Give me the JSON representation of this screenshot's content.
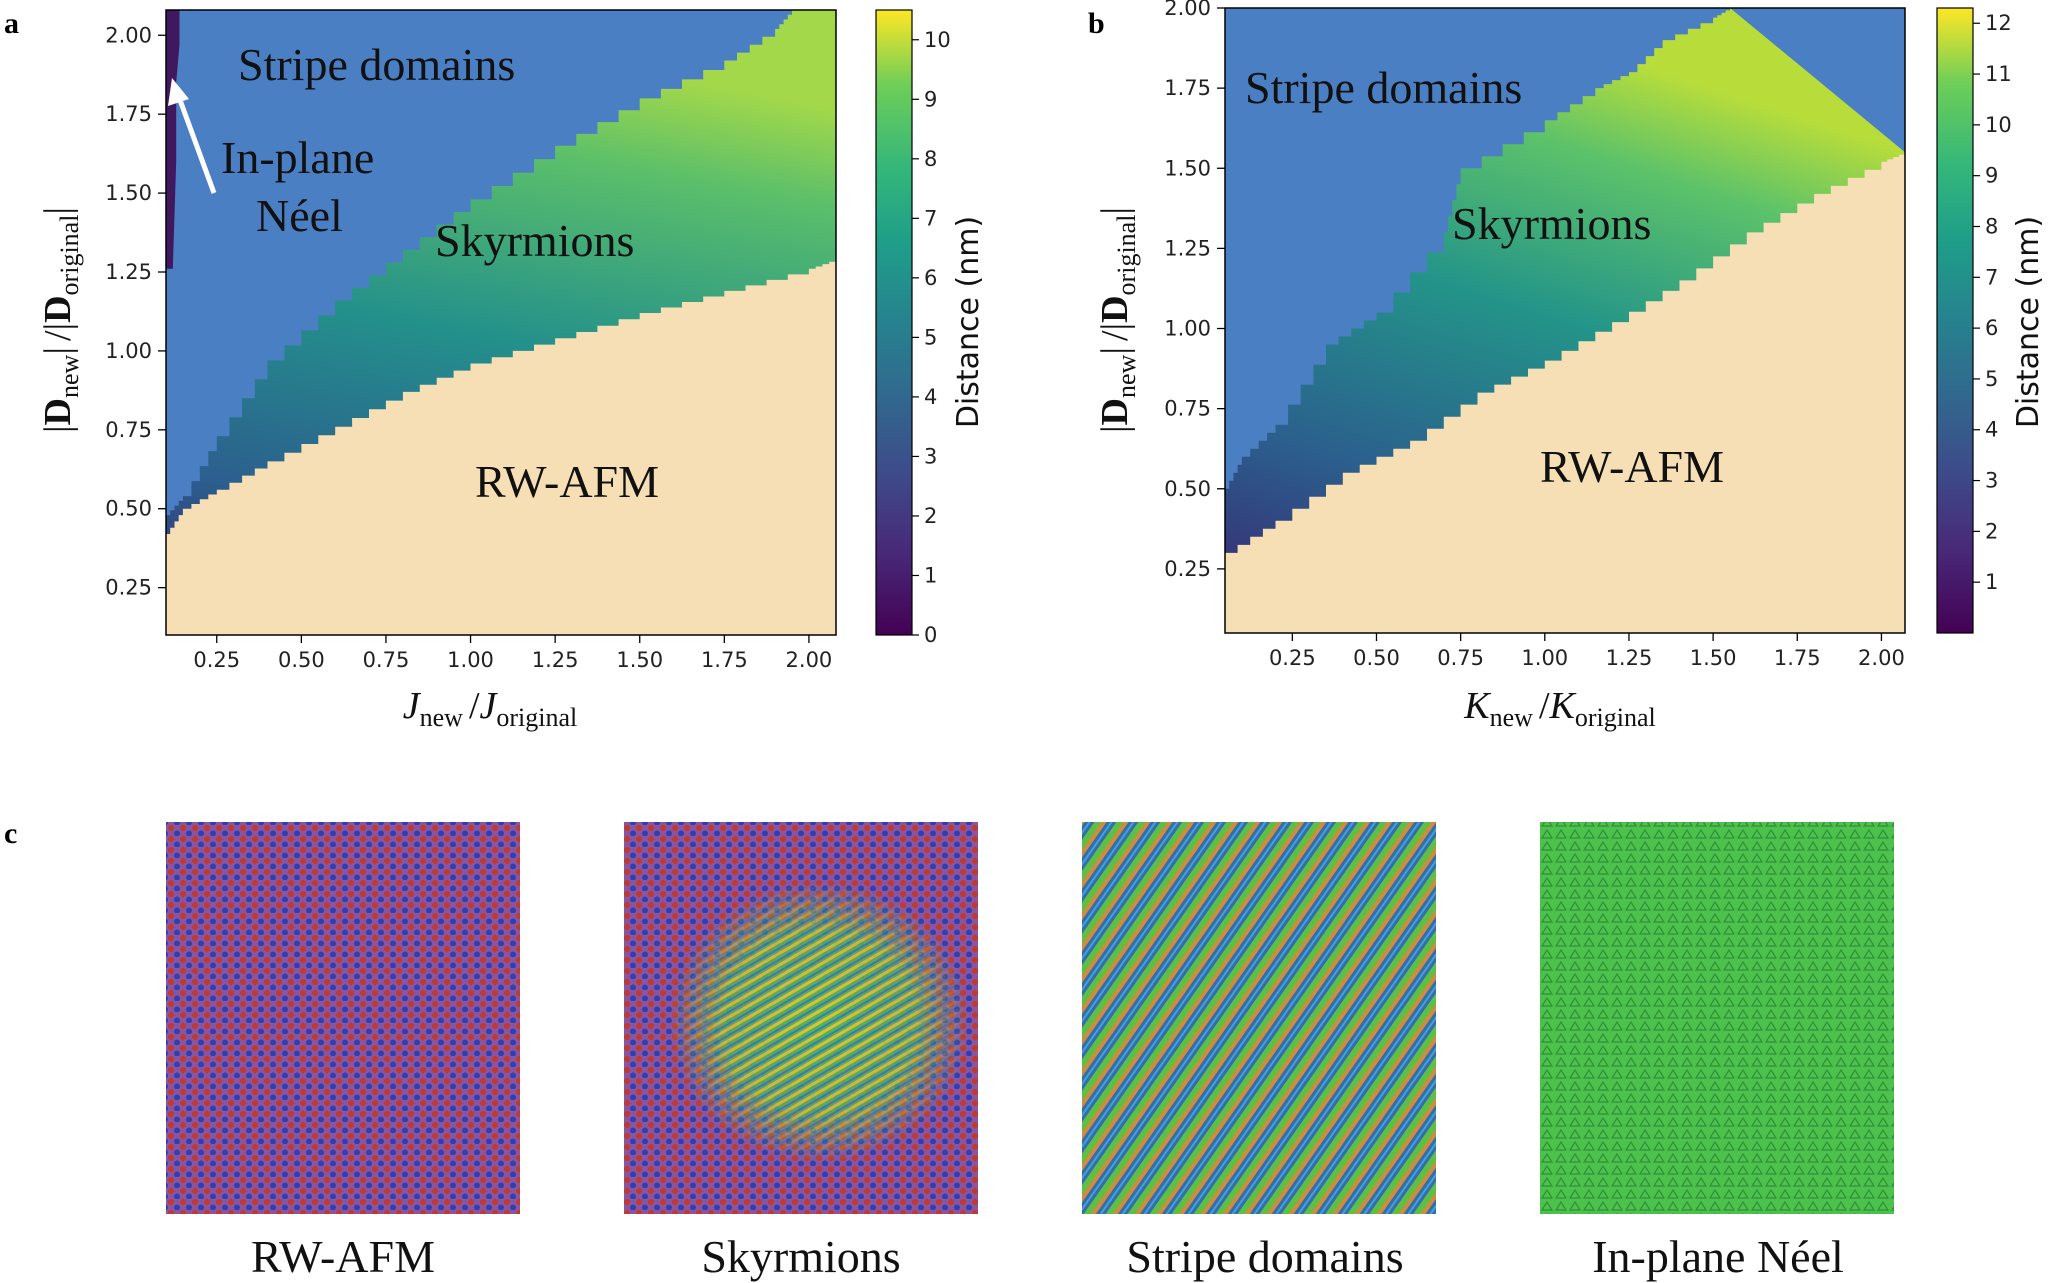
{
  "chart_data": [
    {
      "panel": "a",
      "type": "heatmap",
      "title": "",
      "xlabel": {
        "main": "J",
        "sub1": "new",
        "sep": "/",
        "main2": "J",
        "sub2": "original"
      },
      "ylabel": {
        "bar": "|",
        "main": "D",
        "sub1": "new",
        "sep": "/",
        "main2": "D",
        "sub2": "original"
      },
      "xlim": [
        0.1,
        2.08
      ],
      "ylim": [
        0.1,
        2.08
      ],
      "xticks": [
        0.25,
        0.5,
        0.75,
        1.0,
        1.25,
        1.5,
        1.75,
        2.0
      ],
      "xtick_labels": [
        "0.25",
        "0.50",
        "0.75",
        "1.00",
        "1.25",
        "1.50",
        "1.75",
        "2.00"
      ],
      "yticks": [
        0.25,
        0.5,
        0.75,
        1.0,
        1.25,
        1.5,
        1.75,
        2.0
      ],
      "ytick_labels": [
        "0.25",
        "0.50",
        "0.75",
        "1.00",
        "1.25",
        "1.50",
        "1.75",
        "2.00"
      ],
      "boundaries": {
        "rwafm_skyrmion": {
          "x": [
            0.1,
            0.15,
            0.25,
            0.4,
            0.6,
            0.8,
            1.0,
            1.25,
            1.5,
            1.75,
            2.0,
            2.08
          ],
          "y": [
            0.42,
            0.5,
            0.56,
            0.65,
            0.76,
            0.87,
            0.96,
            1.04,
            1.12,
            1.19,
            1.26,
            1.29
          ]
        },
        "skyrmion_stripe": {
          "x": [
            0.1,
            0.15,
            0.25,
            0.4,
            0.6,
            0.8,
            1.0,
            1.25,
            1.5,
            1.75,
            1.9,
            1.95
          ],
          "y": [
            0.48,
            0.54,
            0.73,
            0.97,
            1.16,
            1.32,
            1.48,
            1.65,
            1.8,
            1.92,
            2.02,
            2.08
          ]
        },
        "inplane_neel_right_edge": {
          "x": [
            0.14,
            0.14,
            0.13,
            0.13,
            0.12
          ],
          "y": [
            2.08,
            1.97,
            1.85,
            1.6,
            1.26
          ]
        }
      },
      "regions": [
        {
          "name": "Stripe domains",
          "color": "#4a7fc4"
        },
        {
          "name": "Skyrmions",
          "color": "#2a8b8b"
        },
        {
          "name": "RW-AFM",
          "color": "#f6dfb5"
        },
        {
          "name": "In-plane Néel",
          "color": "#40185f"
        }
      ],
      "labels": {
        "stripe": "Stripe domains",
        "inplane1": "In-plane",
        "inplane2": "Néel",
        "skyrmions": "Skyrmions",
        "rwafm": "RW-AFM"
      },
      "colorbar": {
        "label": "Distance (nm)",
        "range": [
          0,
          10.5
        ],
        "ticks": [
          "0",
          "1",
          "2",
          "3",
          "4",
          "5",
          "6",
          "7",
          "8",
          "9",
          "10"
        ]
      }
    },
    {
      "panel": "b",
      "type": "heatmap",
      "title": "",
      "xlabel": {
        "main": "K",
        "sub1": "new",
        "sep": "/",
        "main2": "K",
        "sub2": "original"
      },
      "ylabel": {
        "bar": "|",
        "main": "D",
        "sub1": "new",
        "sep": "/",
        "main2": "D",
        "sub2": "original"
      },
      "xlim": [
        0.05,
        2.07
      ],
      "ylim": [
        0.05,
        2.0
      ],
      "xticks": [
        0.25,
        0.5,
        0.75,
        1.0,
        1.25,
        1.5,
        1.75,
        2.0
      ],
      "xtick_labels": [
        "0.25",
        "0.50",
        "0.75",
        "1.00",
        "1.25",
        "1.50",
        "1.75",
        "2.00"
      ],
      "yticks": [
        0.25,
        0.5,
        0.75,
        1.0,
        1.25,
        1.5,
        1.75,
        2.0
      ],
      "ytick_labels": [
        "0.25",
        "0.50",
        "0.75",
        "1.00",
        "1.25",
        "1.50",
        "1.75",
        "2.00"
      ],
      "boundaries": {
        "rwafm_skyrmion": {
          "x": [
            0.05,
            0.2,
            0.4,
            0.6,
            0.8,
            1.0,
            1.2,
            1.4,
            1.6,
            1.8,
            2.0,
            2.07
          ],
          "y": [
            0.3,
            0.4,
            0.55,
            0.65,
            0.8,
            0.9,
            1.02,
            1.15,
            1.3,
            1.42,
            1.52,
            1.55
          ]
        },
        "skyrmion_stripe": {
          "x": [
            0.05,
            0.1,
            0.2,
            0.35,
            0.5,
            0.7,
            0.75,
            1.0,
            1.15,
            1.25,
            1.35,
            1.5,
            1.55
          ],
          "y": [
            0.5,
            0.6,
            0.7,
            0.95,
            1.05,
            1.3,
            1.5,
            1.65,
            1.75,
            1.8,
            1.9,
            1.97,
            2.0
          ]
        },
        "upper_right_edge": {
          "x": [
            1.55,
            2.07
          ],
          "y": [
            2.0,
            1.55
          ]
        }
      },
      "regions": [
        {
          "name": "Stripe domains",
          "color": "#4a7fc4"
        },
        {
          "name": "Skyrmions",
          "color": "#2a8b8b"
        },
        {
          "name": "RW-AFM",
          "color": "#f6dfb5"
        }
      ],
      "labels": {
        "stripe": "Stripe domains",
        "skyrmions": "Skyrmions",
        "rwafm": "RW-AFM"
      },
      "colorbar": {
        "label": "Distance (nm)",
        "range": [
          0,
          12.3
        ],
        "ticks": [
          "1",
          "2",
          "3",
          "4",
          "5",
          "6",
          "7",
          "8",
          "9",
          "10",
          "11",
          "12"
        ]
      }
    }
  ],
  "panel_labels": {
    "a": "a",
    "b": "b",
    "c": "c"
  },
  "snapshots": [
    {
      "caption": "RW-AFM",
      "style": "rwafm"
    },
    {
      "caption": "Skyrmions",
      "style": "skyrmion"
    },
    {
      "caption": "Stripe domains",
      "style": "stripe"
    },
    {
      "caption": "In-plane Néel",
      "style": "neel"
    }
  ]
}
